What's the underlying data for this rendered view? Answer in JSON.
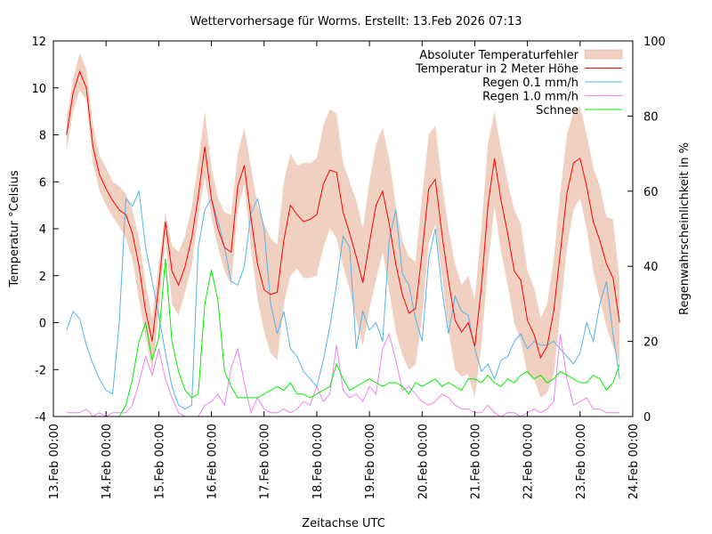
{
  "chart_data": {
    "type": "line",
    "title": "Wettervorhersage für Worms. Erstellt: 13.Feb 2026 07:13",
    "xlabel": "Zeitachse UTC",
    "ylabel": "Temperatur °Celsius",
    "y2label": "Regenwahrscheinlichkeit in %",
    "x_unit": "hours since 13.Feb 00:00",
    "xlim": [
      0,
      264
    ],
    "ylim": [
      -4,
      12
    ],
    "y2lim": [
      0,
      100
    ],
    "yticks": [
      -4,
      -2,
      0,
      2,
      4,
      6,
      8,
      10,
      12
    ],
    "y2ticks": [
      0,
      20,
      40,
      60,
      80,
      100
    ],
    "xticks": [
      {
        "hour": 0,
        "label": "13.Feb 00:00"
      },
      {
        "hour": 24,
        "label": "14.Feb 00:00"
      },
      {
        "hour": 48,
        "label": "15.Feb 00:00"
      },
      {
        "hour": 72,
        "label": "16.Feb 00:00"
      },
      {
        "hour": 96,
        "label": "17.Feb 00:00"
      },
      {
        "hour": 120,
        "label": "18.Feb 00:00"
      },
      {
        "hour": 144,
        "label": "19.Feb 00:00"
      },
      {
        "hour": 168,
        "label": "20.Feb 00:00"
      },
      {
        "hour": 192,
        "label": "21.Feb 00:00"
      },
      {
        "hour": 216,
        "label": "22.Feb 00:00"
      },
      {
        "hour": 240,
        "label": "23.Feb 00:00"
      },
      {
        "hour": 264,
        "label": "24.Feb 00:00"
      }
    ],
    "grid": false,
    "legend_position": "top-right",
    "legend": [
      {
        "name": "Absoluter Temperaturfehler",
        "kind": "band",
        "color": "#f0d0c0"
      },
      {
        "name": "Temperatur in 2 Meter Höhe",
        "kind": "line",
        "color": "#ff0000"
      },
      {
        "name": "Regen 0.1 mm/h",
        "kind": "line",
        "color": "#56b4e9"
      },
      {
        "name": "Regen 1.0 mm/h",
        "kind": "line",
        "color": "#ee82ee"
      },
      {
        "name": "Schnee",
        "kind": "line",
        "color": "#00ee00"
      }
    ],
    "x": [
      6,
      9,
      12,
      15,
      18,
      21,
      24,
      27,
      30,
      33,
      36,
      39,
      42,
      45,
      48,
      51,
      54,
      57,
      60,
      63,
      66,
      69,
      72,
      75,
      78,
      81,
      84,
      87,
      90,
      93,
      96,
      99,
      102,
      105,
      108,
      111,
      114,
      117,
      120,
      123,
      126,
      129,
      132,
      135,
      138,
      141,
      144,
      147,
      150,
      153,
      156,
      159,
      162,
      165,
      168,
      171,
      174,
      177,
      180,
      183,
      186,
      189,
      192,
      195,
      198,
      201,
      204,
      207,
      210,
      213,
      216,
      219,
      222,
      225,
      228,
      231,
      234,
      237,
      240,
      243,
      246,
      249,
      252,
      255,
      258
    ],
    "series": [
      {
        "name": "Temperatur in 2 Meter Höhe",
        "axis": "y",
        "values": [
          8.0,
          9.8,
          10.7,
          10.0,
          7.5,
          6.3,
          5.7,
          5.2,
          4.8,
          4.6,
          3.8,
          2.4,
          0.5,
          -0.8,
          1.6,
          4.3,
          2.2,
          1.6,
          2.4,
          3.6,
          5.4,
          7.5,
          5.3,
          4.0,
          3.2,
          3.0,
          5.8,
          6.7,
          4.5,
          2.5,
          1.4,
          1.2,
          1.3,
          3.5,
          5.0,
          4.6,
          4.3,
          4.4,
          4.6,
          5.9,
          6.5,
          6.4,
          4.7,
          3.8,
          2.8,
          1.7,
          3.4,
          5.0,
          5.6,
          4.2,
          2.5,
          1.2,
          0.4,
          0.6,
          3.0,
          5.7,
          6.1,
          3.8,
          1.8,
          0.1,
          -0.4,
          0.0,
          -1.0,
          1.5,
          5.0,
          7.0,
          5.2,
          3.8,
          2.2,
          1.8,
          0.1,
          -0.5,
          -1.5,
          -1.0,
          0.5,
          3.0,
          5.5,
          6.8,
          7.0,
          5.8,
          4.3,
          3.5,
          2.5,
          1.9,
          0.0
        ]
      },
      {
        "name": "Absoluter Temperaturfehler (untere Grenze)",
        "axis": "y",
        "values": [
          7.3,
          9.0,
          9.9,
          9.5,
          6.8,
          5.6,
          5.0,
          4.5,
          4.1,
          3.6,
          2.7,
          1.0,
          -0.6,
          -2.1,
          0.4,
          3.6,
          0.8,
          0.3,
          1.3,
          2.4,
          4.5,
          6.2,
          4.5,
          3.2,
          2.2,
          1.6,
          4.8,
          5.9,
          3.2,
          1.0,
          -0.4,
          -1.3,
          -1.6,
          0.8,
          2.0,
          2.3,
          1.9,
          1.9,
          2.0,
          3.2,
          4.0,
          3.6,
          2.4,
          1.4,
          0.1,
          -1.0,
          0.6,
          1.8,
          3.0,
          1.4,
          -0.4,
          -1.4,
          -2.0,
          -1.8,
          0.2,
          3.4,
          4.2,
          2.0,
          -0.3,
          -2.0,
          -2.3,
          -2.2,
          -3.2,
          -1.0,
          2.4,
          5.0,
          3.0,
          1.6,
          0.0,
          -0.8,
          -2.2,
          -2.4,
          -3.2,
          -3.0,
          -2.2,
          0.5,
          3.2,
          4.8,
          5.3,
          4.0,
          2.2,
          1.0,
          -0.2,
          -1.0,
          -1.8
        ]
      },
      {
        "name": "Absoluter Temperaturfehler (obere Grenze)",
        "axis": "y",
        "values": [
          8.7,
          10.4,
          11.5,
          10.8,
          8.4,
          7.1,
          6.6,
          6.0,
          5.8,
          5.5,
          4.8,
          3.6,
          1.7,
          0.2,
          2.5,
          4.7,
          3.3,
          3.0,
          3.7,
          4.9,
          6.8,
          9.0,
          6.6,
          5.3,
          4.7,
          4.6,
          7.2,
          8.3,
          6.6,
          5.0,
          4.2,
          3.6,
          3.3,
          6.0,
          7.2,
          6.7,
          6.8,
          6.8,
          7.0,
          8.4,
          9.1,
          8.9,
          6.8,
          6.0,
          5.2,
          4.0,
          6.0,
          7.6,
          8.3,
          7.0,
          5.0,
          3.5,
          2.8,
          2.6,
          5.4,
          8.0,
          8.4,
          6.0,
          4.0,
          2.5,
          1.6,
          2.0,
          1.0,
          4.0,
          7.6,
          9.0,
          7.4,
          6.0,
          4.8,
          4.2,
          2.2,
          1.5,
          0.2,
          0.8,
          2.7,
          5.6,
          8.0,
          9.0,
          9.2,
          8.0,
          6.6,
          5.8,
          4.5,
          4.4,
          1.8
        ]
      },
      {
        "name": "Regen 0.1 mm/h",
        "axis": "y2",
        "values": [
          23,
          28,
          26,
          19,
          14,
          10,
          7,
          6,
          25,
          58,
          56,
          60,
          45,
          36,
          27,
          17,
          8,
          3,
          2,
          3,
          45,
          55,
          58,
          52,
          45,
          36,
          35,
          40,
          54,
          58,
          50,
          30,
          22,
          28,
          18,
          16,
          12,
          10,
          8,
          15,
          24,
          35,
          48,
          45,
          18,
          28,
          23,
          25,
          20,
          47,
          55,
          38,
          35,
          26,
          20,
          42,
          50,
          34,
          22,
          32,
          28,
          27,
          18,
          12,
          14,
          10,
          15,
          16,
          20,
          22,
          18,
          20,
          19,
          19,
          20,
          18,
          16,
          14,
          17,
          25,
          20,
          30,
          36,
          22,
          10
        ]
      },
      {
        "name": "Regen 1.0 mm/h",
        "axis": "y2",
        "values": [
          1,
          1,
          1,
          2,
          0,
          1,
          0,
          1,
          1,
          1,
          3,
          9,
          16,
          11,
          18,
          10,
          5,
          1,
          0,
          0,
          0,
          3,
          4,
          6,
          3,
          13,
          18,
          9,
          1,
          5,
          2,
          1,
          1,
          2,
          1,
          2,
          4,
          3,
          8,
          4,
          6,
          19,
          7,
          5,
          6,
          4,
          8,
          6,
          18,
          22,
          15,
          7,
          8,
          6,
          4,
          3,
          4,
          6,
          5,
          3,
          2,
          2,
          1,
          1,
          3,
          1,
          0,
          1,
          1,
          0,
          1,
          2,
          1,
          2,
          4,
          22,
          10,
          3,
          4,
          5,
          2,
          2,
          1,
          1,
          1
        ]
      },
      {
        "name": "Schnee",
        "axis": "y2",
        "values": [
          0,
          0,
          0,
          0,
          0,
          0,
          0,
          0,
          0,
          3,
          10,
          20,
          25,
          15,
          21,
          42,
          20,
          12,
          7,
          5,
          6,
          30,
          39,
          31,
          12,
          8,
          5,
          5,
          5,
          5,
          6,
          7,
          8,
          7,
          9,
          6,
          6,
          5,
          6,
          7,
          8,
          14,
          10,
          7,
          8,
          9,
          10,
          9,
          8,
          9,
          9,
          8,
          6,
          9,
          8,
          9,
          10,
          8,
          9,
          8,
          7,
          10,
          10,
          9,
          11,
          9,
          8,
          10,
          9,
          11,
          12,
          10,
          11,
          9,
          10,
          12,
          11,
          10,
          9,
          9,
          11,
          10,
          7,
          9,
          14
        ]
      }
    ]
  }
}
